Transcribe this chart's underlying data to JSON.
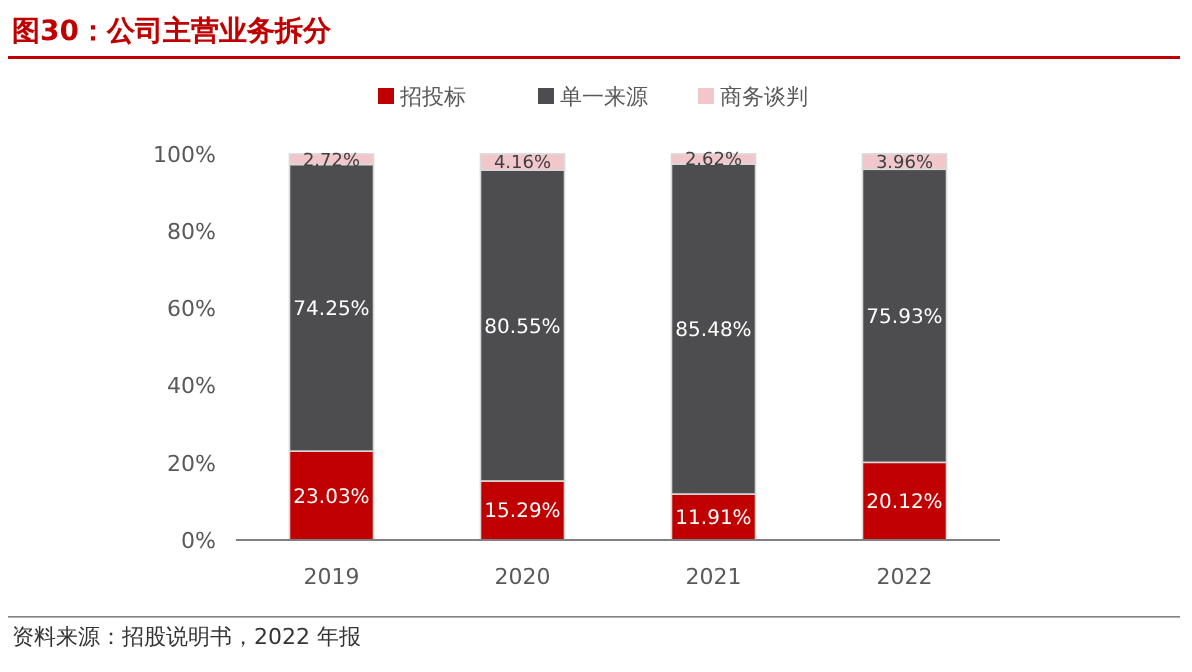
{
  "chart_data": {
    "type": "bar",
    "title": "图30：公司主营业务拆分",
    "stacked": true,
    "categories": [
      "2019",
      "2020",
      "2021",
      "2022"
    ],
    "series": [
      {
        "name": "招投标",
        "color": "#c00000",
        "values": [
          23.03,
          15.29,
          11.91,
          20.12
        ],
        "value_labels": [
          "23.03%",
          "15.29%",
          "11.91%",
          "20.12%"
        ]
      },
      {
        "name": "单一来源",
        "color": "#4d4d4f",
        "values": [
          74.25,
          80.55,
          85.48,
          75.93
        ],
        "value_labels": [
          "74.25%",
          "80.55%",
          "85.48%",
          "75.93%"
        ]
      },
      {
        "name": "商务谈判",
        "color": "#f2c7cc",
        "values": [
          2.72,
          4.16,
          2.62,
          3.96
        ],
        "value_labels": [
          "2.72%",
          "4.16%",
          "2.62%",
          "3.96%"
        ]
      }
    ],
    "ylim": [
      0,
      100
    ],
    "yticks": [
      {
        "value": 0,
        "label": "0%"
      },
      {
        "value": 20,
        "label": "20%"
      },
      {
        "value": 40,
        "label": "40%"
      },
      {
        "value": 60,
        "label": "60%"
      },
      {
        "value": 80,
        "label": "80%"
      },
      {
        "value": 100,
        "label": "100%"
      }
    ],
    "grid": false,
    "legend": "top",
    "annotations": [
      "资料来源：招股说明书，2022 年报"
    ]
  }
}
